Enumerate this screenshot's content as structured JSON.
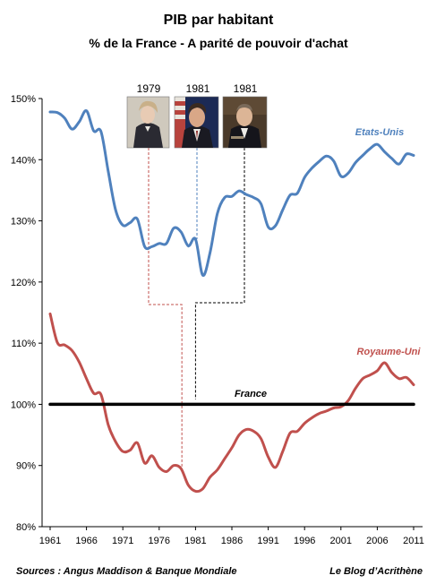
{
  "chart_data": {
    "type": "line",
    "title": "PIB par habitant",
    "subtitle": "% de la France - A parité de pouvoir d'achat",
    "xlabel": "",
    "ylabel": "",
    "xlim": [
      1961,
      2011
    ],
    "ylim": [
      80,
      150
    ],
    "x_ticks": [
      "1961",
      "1966",
      "1971",
      "1976",
      "1981",
      "1986",
      "1991",
      "1996",
      "2001",
      "2006",
      "2011"
    ],
    "y_ticks": [
      "80%",
      "90%",
      "100%",
      "110%",
      "120%",
      "130%",
      "140%",
      "150%"
    ],
    "grid": false,
    "x": [
      1961,
      1962,
      1963,
      1964,
      1965,
      1966,
      1967,
      1968,
      1969,
      1970,
      1971,
      1972,
      1973,
      1974,
      1975,
      1976,
      1977,
      1978,
      1979,
      1980,
      1981,
      1982,
      1983,
      1984,
      1985,
      1986,
      1987,
      1988,
      1989,
      1990,
      1991,
      1992,
      1993,
      1994,
      1995,
      1996,
      1997,
      1998,
      1999,
      2000,
      2001,
      2002,
      2003,
      2004,
      2005,
      2006,
      2007,
      2008,
      2009,
      2010,
      2011
    ],
    "series": [
      {
        "name": "Etats-Unis",
        "color": "#4f81bd",
        "values": [
          147.8,
          147.7,
          146.8,
          145.0,
          146.2,
          148.0,
          144.7,
          144.6,
          138.0,
          131.8,
          129.3,
          129.7,
          130.3,
          125.8,
          125.8,
          126.3,
          126.3,
          128.8,
          128.2,
          125.9,
          127.0,
          121.1,
          124.8,
          131.2,
          133.8,
          134.0,
          134.9,
          134.3,
          133.8,
          132.8,
          129.0,
          129.2,
          131.8,
          134.2,
          134.5,
          137.1,
          138.6,
          139.7,
          140.6,
          139.8,
          137.3,
          137.8,
          139.5,
          140.7,
          141.8,
          142.5,
          141.3,
          140.2,
          139.3,
          140.9,
          140.7
        ]
      },
      {
        "name": "Royaume-Uni",
        "color": "#c0504d",
        "values": [
          114.8,
          110.1,
          109.7,
          108.8,
          106.9,
          104.2,
          101.8,
          101.6,
          96.6,
          93.9,
          92.3,
          92.5,
          93.7,
          90.4,
          91.6,
          89.7,
          89.0,
          90.0,
          89.5,
          86.8,
          85.8,
          86.2,
          88.1,
          89.3,
          91.1,
          92.9,
          95.0,
          95.9,
          95.6,
          94.4,
          91.4,
          89.7,
          92.3,
          95.3,
          95.6,
          96.9,
          97.8,
          98.5,
          98.9,
          99.4,
          99.6,
          100.6,
          102.6,
          104.2,
          104.8,
          105.5,
          106.8,
          105.2,
          104.2,
          104.4,
          103.2
        ]
      },
      {
        "name": "France",
        "color": "#000000",
        "values": [
          100,
          100,
          100,
          100,
          100,
          100,
          100,
          100,
          100,
          100,
          100,
          100,
          100,
          100,
          100,
          100,
          100,
          100,
          100,
          100,
          100,
          100,
          100,
          100,
          100,
          100,
          100,
          100,
          100,
          100,
          100,
          100,
          100,
          100,
          100,
          100,
          100,
          100,
          100,
          100,
          100,
          100,
          100,
          100,
          100,
          100,
          100,
          100,
          100,
          100,
          100
        ]
      }
    ],
    "photo_labels": [
      "1979",
      "1981",
      "1981"
    ],
    "markers": [
      {
        "year_label": "1979",
        "color": "#c0504d",
        "points_to": "Royaume-Uni"
      },
      {
        "year_label": "1981",
        "color": "#4f81bd",
        "points_to": "Etats-Unis"
      },
      {
        "year_label": "1981",
        "color": "#000000",
        "points_to": "France"
      }
    ]
  },
  "sources": "Sources : Angus Maddison & Banque Mondiale",
  "credit": "Le Blog d’Acrithène"
}
